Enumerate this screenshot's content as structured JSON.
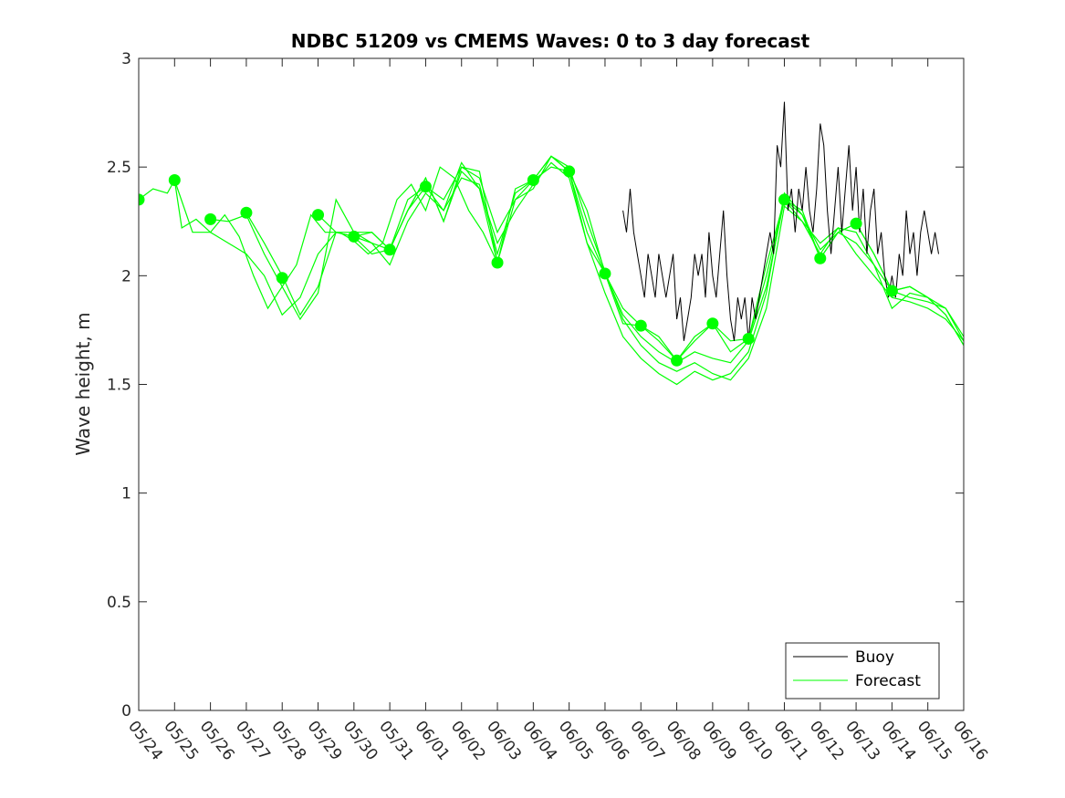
{
  "chart_data": {
    "type": "line",
    "title": "NDBC 51209 vs CMEMS Waves: 0 to 3 day forecast",
    "xlabel": "",
    "ylabel": "Wave height, m",
    "ylim": [
      0,
      3
    ],
    "yticks": [
      0,
      0.5,
      1,
      1.5,
      2,
      2.5,
      3
    ],
    "ytick_labels": [
      "0",
      "0.5",
      "1",
      "1.5",
      "2",
      "2.5",
      "3"
    ],
    "x_tick_labels": [
      "05/24",
      "05/25",
      "05/26",
      "05/27",
      "05/28",
      "05/29",
      "05/30",
      "05/31",
      "06/01",
      "06/02",
      "06/03",
      "06/04",
      "06/05",
      "06/06",
      "06/07",
      "06/08",
      "06/09",
      "06/10",
      "06/11",
      "06/12",
      "06/13",
      "06/14",
      "06/15",
      "06/16"
    ],
    "x_unit": "days since 05/24 (tick index)",
    "grid": false,
    "legend": {
      "position": "bottom-right",
      "entries": [
        {
          "name": "Buoy",
          "color": "#000000"
        },
        {
          "name": "Forecast",
          "color": "#00ff00"
        }
      ]
    },
    "colors": {
      "buoy": "#000000",
      "forecast": "#00ff00",
      "marker": "#00ff00"
    },
    "series": [
      {
        "name": "Buoy",
        "x": [
          13.5,
          13.6,
          13.7,
          13.8,
          13.9,
          14.0,
          14.1,
          14.2,
          14.3,
          14.4,
          14.5,
          14.6,
          14.7,
          14.8,
          14.9,
          15.0,
          15.1,
          15.2,
          15.3,
          15.4,
          15.5,
          15.6,
          15.7,
          15.8,
          15.9,
          16.0,
          16.1,
          16.2,
          16.3,
          16.4,
          16.5,
          16.6,
          16.7,
          16.8,
          16.9,
          17.0,
          17.1,
          17.2,
          17.3,
          17.4,
          17.5,
          17.6,
          17.7,
          17.8,
          17.9,
          18.0,
          18.1,
          18.2,
          18.3,
          18.4,
          18.5,
          18.6,
          18.7,
          18.8,
          18.9,
          19.0,
          19.1,
          19.2,
          19.3,
          19.4,
          19.5,
          19.6,
          19.7,
          19.8,
          19.9,
          20.0,
          20.1,
          20.2,
          20.3,
          20.4,
          20.5,
          20.6,
          20.7,
          20.8,
          20.9,
          21.0,
          21.1,
          21.2,
          21.3,
          21.4,
          21.5,
          21.6,
          21.7,
          21.8,
          21.9,
          22.0,
          22.1,
          22.2,
          22.3
        ],
        "values": [
          2.3,
          2.2,
          2.4,
          2.2,
          2.1,
          2.0,
          1.9,
          2.1,
          2.0,
          1.9,
          2.1,
          2.0,
          1.9,
          2.0,
          2.1,
          1.8,
          1.9,
          1.7,
          1.8,
          1.9,
          2.1,
          2.0,
          2.1,
          1.9,
          2.2,
          2.0,
          1.9,
          2.1,
          2.3,
          2.0,
          1.8,
          1.7,
          1.9,
          1.8,
          1.9,
          1.7,
          1.9,
          1.8,
          1.9,
          2.0,
          2.1,
          2.2,
          2.1,
          2.6,
          2.5,
          2.8,
          2.3,
          2.4,
          2.2,
          2.4,
          2.3,
          2.5,
          2.3,
          2.2,
          2.4,
          2.7,
          2.6,
          2.3,
          2.1,
          2.3,
          2.5,
          2.2,
          2.4,
          2.6,
          2.3,
          2.5,
          2.2,
          2.4,
          2.1,
          2.3,
          2.4,
          2.1,
          2.2,
          2.0,
          1.9,
          2.0,
          1.9,
          2.1,
          2.0,
          2.3,
          2.1,
          2.2,
          2.0,
          2.2,
          2.3,
          2.2,
          2.1,
          2.2,
          2.1
        ]
      },
      {
        "name": "Forecast",
        "runs": [
          {
            "x": [
              0,
              0.4,
              0.8,
              1.0,
              1.2,
              1.6,
              2.0,
              2.4,
              2.8,
              3.2,
              3.6,
              4.0,
              4.4,
              4.8,
              5.2,
              5.6,
              6.0,
              6.4,
              6.8,
              7.2,
              7.6,
              8.0,
              8.4,
              8.8,
              9.2,
              9.6,
              10.0
            ],
            "values": [
              2.35,
              2.4,
              2.38,
              2.44,
              2.22,
              2.26,
              2.2,
              2.28,
              2.18,
              2.0,
              1.85,
              1.95,
              2.05,
              2.28,
              2.2,
              2.2,
              2.16,
              2.1,
              2.15,
              2.35,
              2.42,
              2.3,
              2.5,
              2.45,
              2.3,
              2.2,
              2.06
            ]
          },
          {
            "x": [
              1,
              1.5,
              2,
              2.5,
              3,
              3.5,
              4,
              4.5,
              5,
              5.5,
              6,
              6.5,
              7,
              7.5,
              8,
              8.5,
              9,
              9.5,
              10,
              10.5,
              11,
              11.5,
              12,
              12.5,
              13,
              13.5,
              14,
              14.5,
              15,
              15.5,
              16,
              16.5,
              17,
              17.5,
              18,
              18.5,
              19,
              19.5,
              20,
              20.5,
              21,
              21.5,
              22,
              22.5,
              23
            ],
            "values": [
              2.44,
              2.2,
              2.2,
              2.15,
              2.1,
              2.0,
              1.82,
              1.9,
              2.1,
              2.2,
              2.18,
              2.1,
              2.12,
              2.3,
              2.45,
              2.25,
              2.5,
              2.45,
              2.2,
              2.35,
              2.4,
              2.55,
              2.5,
              2.25,
              2.02,
              1.8,
              1.68,
              1.6,
              1.56,
              1.6,
              1.55,
              1.52,
              1.62,
              1.85,
              2.32,
              2.25,
              2.15,
              2.22,
              2.1,
              2.0,
              1.9,
              1.88,
              1.85,
              1.8,
              1.7
            ]
          },
          {
            "x": [
              2,
              2.5,
              3,
              3.5,
              4,
              4.5,
              5,
              5.5,
              6,
              6.5,
              7,
              7.5,
              8,
              8.5,
              9,
              9.5,
              10,
              10.5,
              11,
              11.5,
              12,
              12.5,
              13,
              13.5,
              14,
              14.5,
              15,
              15.5,
              16,
              16.5,
              17,
              17.5,
              18,
              18.5,
              19,
              19.5,
              20,
              20.5,
              21,
              21.5,
              22,
              22.5,
              23
            ],
            "values": [
              2.26,
              2.25,
              2.28,
              2.1,
              1.95,
              1.8,
              1.92,
              2.35,
              2.2,
              2.15,
              2.05,
              2.25,
              2.38,
              2.3,
              2.52,
              2.4,
              2.15,
              2.3,
              2.42,
              2.52,
              2.45,
              2.15,
              1.92,
              1.72,
              1.62,
              1.55,
              1.5,
              1.56,
              1.52,
              1.55,
              1.65,
              1.92,
              2.38,
              2.28,
              2.12,
              2.2,
              2.15,
              2.05,
              1.85,
              1.92,
              1.9,
              1.85,
              1.72
            ]
          },
          {
            "x": [
              3,
              3.5,
              4,
              4.5,
              5,
              5.5,
              6,
              6.5,
              7,
              7.5,
              8,
              8.5,
              9,
              9.5,
              10,
              10.5,
              11,
              11.5,
              12,
              12.5,
              13,
              13.5,
              14,
              14.5,
              15,
              15.5,
              16,
              16.5,
              17,
              17.5,
              18,
              18.5,
              19,
              19.5,
              20,
              20.5,
              21,
              21.5,
              22,
              22.5,
              23
            ],
            "values": [
              2.29,
              2.15,
              2.0,
              1.82,
              1.95,
              2.2,
              2.2,
              2.2,
              2.12,
              2.3,
              2.45,
              2.25,
              2.48,
              2.4,
              2.06,
              2.35,
              2.44,
              2.55,
              2.48,
              2.15,
              2.01,
              1.82,
              1.72,
              1.65,
              1.6,
              1.65,
              1.62,
              1.6,
              1.7,
              1.95,
              2.35,
              2.25,
              2.1,
              2.22,
              2.2,
              2.05,
              1.93,
              1.9,
              1.88,
              1.85,
              1.7
            ]
          },
          {
            "x": [
              5,
              5.5,
              6,
              6.5,
              7,
              7.5,
              8,
              8.5,
              9,
              9.5,
              10,
              10.5,
              11,
              11.5,
              12,
              12.5,
              13,
              13.5,
              14,
              14.5,
              15,
              15.5,
              16,
              16.5,
              17,
              17.5,
              18,
              18.5,
              19,
              19.5,
              20,
              20.5,
              21,
              21.5,
              22,
              22.5,
              23
            ],
            "values": [
              2.28,
              2.2,
              2.18,
              2.2,
              2.12,
              2.3,
              2.41,
              2.3,
              2.45,
              2.42,
              2.1,
              2.38,
              2.44,
              2.55,
              2.48,
              2.2,
              2.01,
              1.85,
              1.77,
              1.7,
              1.61,
              1.72,
              1.78,
              1.7,
              1.71,
              2.0,
              2.35,
              2.28,
              2.08,
              2.2,
              2.24,
              2.1,
              1.93,
              1.95,
              1.9,
              1.82,
              1.68
            ]
          },
          {
            "x": [
              6,
              6.5,
              7,
              7.5,
              8,
              8.5,
              9,
              9.5,
              10,
              10.5,
              11,
              11.5,
              12,
              12.5,
              13,
              13.5,
              14,
              14.5,
              15,
              15.5,
              16,
              16.5,
              17,
              17.5,
              18,
              18.5,
              19,
              19.5,
              20,
              20.5,
              21,
              21.5,
              22,
              22.5,
              23
            ],
            "values": [
              2.18,
              2.15,
              2.12,
              2.35,
              2.41,
              2.35,
              2.5,
              2.48,
              2.06,
              2.4,
              2.44,
              2.5,
              2.48,
              2.3,
              2.01,
              1.78,
              1.77,
              1.72,
              1.61,
              1.7,
              1.78,
              1.65,
              1.71,
              2.05,
              2.35,
              2.3,
              2.08,
              2.2,
              2.24,
              2.1,
              1.93,
              1.95,
              1.9,
              1.82,
              1.68
            ]
          }
        ],
        "markers": {
          "x": [
            0,
            1,
            2,
            3,
            4,
            5,
            6,
            7,
            8,
            10,
            11,
            12,
            13,
            14,
            15,
            16,
            17,
            18,
            19,
            20,
            21
          ],
          "values": [
            2.35,
            2.44,
            2.26,
            2.29,
            1.99,
            2.28,
            2.18,
            2.12,
            2.41,
            2.06,
            2.44,
            2.48,
            2.01,
            1.77,
            1.61,
            1.78,
            1.71,
            2.35,
            2.08,
            2.24,
            1.93
          ]
        }
      }
    ]
  },
  "legend": {
    "buoy_label": "Buoy",
    "forecast_label": "Forecast"
  }
}
